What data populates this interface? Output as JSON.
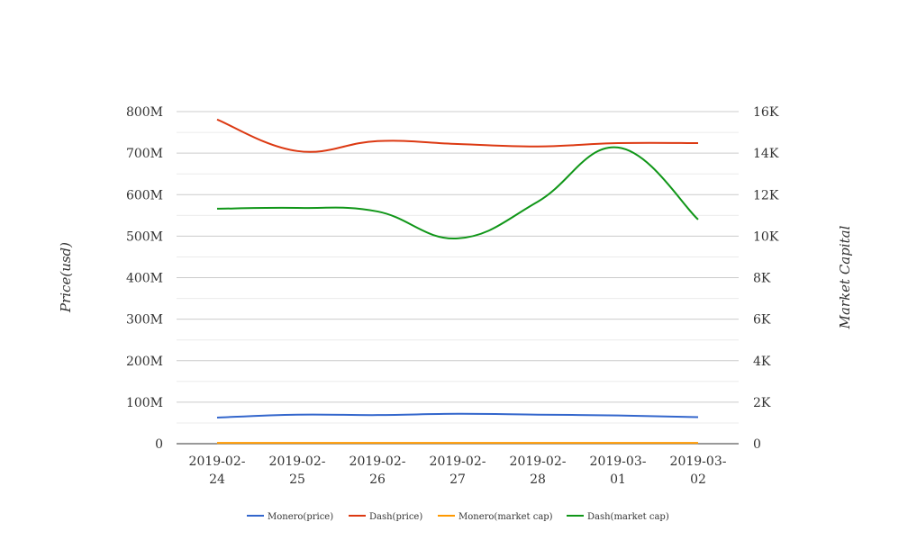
{
  "chart_data": {
    "type": "line",
    "title": "",
    "categories": [
      "2019-02-24",
      "2019-02-25",
      "2019-02-26",
      "2019-02-27",
      "2019-02-28",
      "2019-03-01",
      "2019-03-02"
    ],
    "category_lines": [
      [
        "2019-02-",
        "24"
      ],
      [
        "2019-02-",
        "25"
      ],
      [
        "2019-02-",
        "26"
      ],
      [
        "2019-02-",
        "27"
      ],
      [
        "2019-02-",
        "28"
      ],
      [
        "2019-03-",
        "01"
      ],
      [
        "2019-03-",
        "02"
      ]
    ],
    "ylabel_left": "Price(usd)",
    "ylabel_right": "Market Capital",
    "ylim_left": [
      0,
      800000000
    ],
    "ylim_right": [
      0,
      16000
    ],
    "left_ticks": [
      "0",
      "100M",
      "200M",
      "300M",
      "400M",
      "500M",
      "600M",
      "700M",
      "800M"
    ],
    "right_ticks": [
      "0",
      "2K",
      "4K",
      "6K",
      "8K",
      "10K",
      "12K",
      "14K",
      "16K"
    ],
    "grid": true,
    "legend_position": "bottom",
    "series": [
      {
        "name": "Monero(price)",
        "axis": "left",
        "color": "#3366cc",
        "values": [
          63000000,
          70000000,
          69000000,
          72000000,
          70000000,
          68000000,
          64000000
        ]
      },
      {
        "name": "Dash(price)",
        "axis": "left",
        "color": "#dc3912",
        "values": [
          781000000,
          705000000,
          729000000,
          722000000,
          716000000,
          724000000,
          724000000
        ]
      },
      {
        "name": "Monero(market cap)",
        "axis": "right",
        "color": "#ff9900",
        "values": [
          40,
          40,
          40,
          40,
          40,
          40,
          40
        ]
      },
      {
        "name": "Dash(market cap)",
        "axis": "right",
        "color": "#109618",
        "values": [
          11320,
          11360,
          11190,
          9890,
          11660,
          14270,
          10800
        ]
      }
    ]
  }
}
